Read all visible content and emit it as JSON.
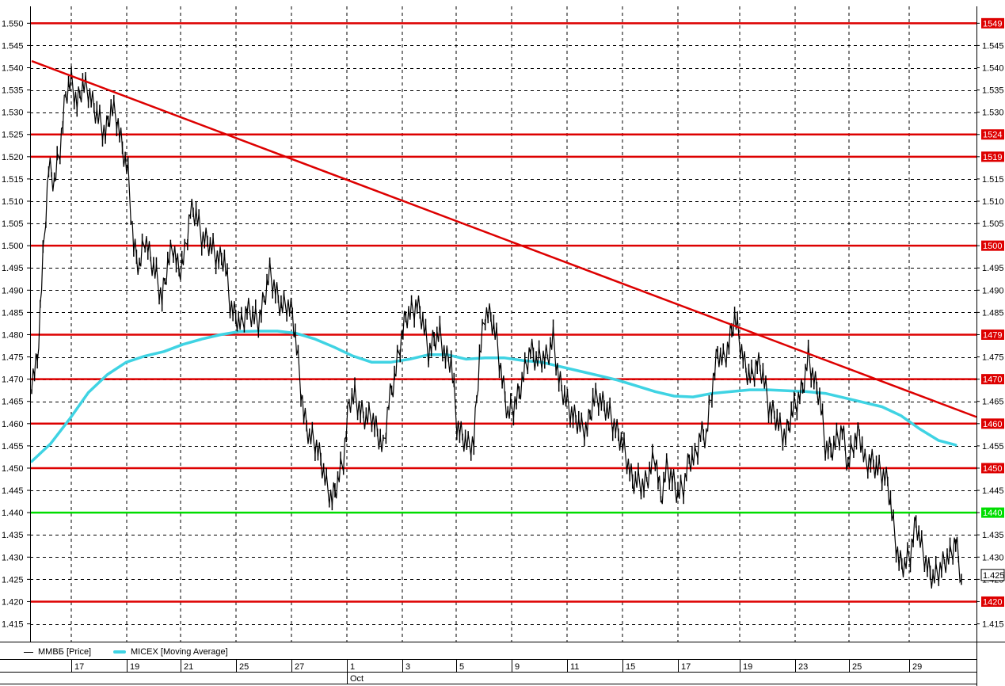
{
  "chart_data": {
    "type": "line",
    "title": "",
    "price_series_name": "ММВБ [Price]",
    "ma_series_name": "MICEX [Moving Average]",
    "colors": {
      "price": "#000000",
      "moving_average": "#3fd3e3",
      "level": "#dd0000",
      "support": "#00dd00",
      "grid": "#000000",
      "label_bg": "#dd0000",
      "label_text": "#ffffff"
    },
    "y_axis": {
      "ylim": [
        1.411,
        1.5538
      ],
      "ticks": [
        "1.415",
        "1.420",
        "1.425",
        "1.430",
        "1.435",
        "1.440",
        "1.445",
        "1.450",
        "1.455",
        "1.460",
        "1.465",
        "1.470",
        "1.475",
        "1.480",
        "1.485",
        "1.490",
        "1.495",
        "1.500",
        "1.505",
        "1.510",
        "1.515",
        "1.520",
        "1.525",
        "1.530",
        "1.535",
        "1.540",
        "1.545",
        "1.550"
      ],
      "grid": true
    },
    "x_axis": {
      "day_labels": [
        "17",
        "19",
        "21",
        "25",
        "27",
        "1",
        "3",
        "5",
        "9",
        "11",
        "15",
        "17",
        "19",
        "23",
        "25",
        "29"
      ],
      "month_label": "Oct",
      "grid": true
    },
    "horizontal_levels": [
      {
        "value": 1.55,
        "label": "1549",
        "kind": "resistance"
      },
      {
        "value": 1.525,
        "label": "1524",
        "kind": "resistance"
      },
      {
        "value": 1.52,
        "label": "1519",
        "kind": "resistance"
      },
      {
        "value": 1.5,
        "label": "1500",
        "kind": "resistance"
      },
      {
        "value": 1.48,
        "label": "1479",
        "kind": "resistance"
      },
      {
        "value": 1.47,
        "label": "1470",
        "kind": "resistance"
      },
      {
        "value": 1.46,
        "label": "1460",
        "kind": "resistance"
      },
      {
        "value": 1.45,
        "label": "1450",
        "kind": "resistance"
      },
      {
        "value": 1.44,
        "label": "1440",
        "kind": "support"
      },
      {
        "value": 1.42,
        "label": "1420",
        "kind": "resistance"
      }
    ],
    "current_value_label": "1.425",
    "trendline": {
      "start": [
        0,
        1.5415
      ],
      "end": [
        1.0,
        1.4615
      ]
    },
    "price_path": [
      [
        0.0,
        1.47
      ],
      [
        0.006,
        1.474
      ],
      [
        0.012,
        1.497
      ],
      [
        0.018,
        1.518
      ],
      [
        0.024,
        1.514
      ],
      [
        0.03,
        1.522
      ],
      [
        0.036,
        1.534
      ],
      [
        0.042,
        1.537
      ],
      [
        0.048,
        1.532
      ],
      [
        0.054,
        1.536
      ],
      [
        0.06,
        1.535
      ],
      [
        0.066,
        1.531
      ],
      [
        0.072,
        1.528
      ],
      [
        0.078,
        1.525
      ],
      [
        0.084,
        1.531
      ],
      [
        0.09,
        1.529
      ],
      [
        0.096,
        1.522
      ],
      [
        0.102,
        1.516
      ],
      [
        0.108,
        1.5
      ],
      [
        0.114,
        1.495
      ],
      [
        0.12,
        1.502
      ],
      [
        0.126,
        1.497
      ],
      [
        0.132,
        1.493
      ],
      [
        0.138,
        1.488
      ],
      [
        0.144,
        1.496
      ],
      [
        0.15,
        1.5
      ],
      [
        0.156,
        1.494
      ],
      [
        0.162,
        1.498
      ],
      [
        0.168,
        1.508
      ],
      [
        0.174,
        1.507
      ],
      [
        0.18,
        1.502
      ],
      [
        0.186,
        1.501
      ],
      [
        0.192,
        1.499
      ],
      [
        0.198,
        1.497
      ],
      [
        0.204,
        1.497
      ],
      [
        0.21,
        1.487
      ],
      [
        0.216,
        1.484
      ],
      [
        0.222,
        1.482
      ],
      [
        0.228,
        1.486
      ],
      [
        0.234,
        1.484
      ],
      [
        0.24,
        1.483
      ],
      [
        0.246,
        1.488
      ],
      [
        0.252,
        1.494
      ],
      [
        0.258,
        1.49
      ],
      [
        0.264,
        1.486
      ],
      [
        0.27,
        1.487
      ],
      [
        0.276,
        1.485
      ],
      [
        0.282,
        1.474
      ],
      [
        0.288,
        1.462
      ],
      [
        0.294,
        1.457
      ],
      [
        0.3,
        1.456
      ],
      [
        0.306,
        1.452
      ],
      [
        0.312,
        1.446
      ],
      [
        0.318,
        1.443
      ],
      [
        0.324,
        1.447
      ],
      [
        0.33,
        1.452
      ],
      [
        0.336,
        1.465
      ],
      [
        0.342,
        1.466
      ],
      [
        0.348,
        1.463
      ],
      [
        0.354,
        1.461
      ],
      [
        0.36,
        1.462
      ],
      [
        0.366,
        1.458
      ],
      [
        0.372,
        1.454
      ],
      [
        0.378,
        1.465
      ],
      [
        0.384,
        1.47
      ],
      [
        0.39,
        1.478
      ],
      [
        0.396,
        1.484
      ],
      [
        0.402,
        1.485
      ],
      [
        0.408,
        1.487
      ],
      [
        0.414,
        1.483
      ],
      [
        0.42,
        1.476
      ],
      [
        0.426,
        1.479
      ],
      [
        0.432,
        1.48
      ],
      [
        0.438,
        1.475
      ],
      [
        0.444,
        1.474
      ],
      [
        0.45,
        1.46
      ],
      [
        0.456,
        1.457
      ],
      [
        0.462,
        1.455
      ],
      [
        0.468,
        1.456
      ],
      [
        0.474,
        1.475
      ],
      [
        0.48,
        1.485
      ],
      [
        0.486,
        1.484
      ],
      [
        0.492,
        1.479
      ],
      [
        0.498,
        1.47
      ],
      [
        0.504,
        1.462
      ],
      [
        0.51,
        1.464
      ],
      [
        0.516,
        1.467
      ],
      [
        0.522,
        1.472
      ],
      [
        0.528,
        1.477
      ],
      [
        0.534,
        1.474
      ],
      [
        0.54,
        1.475
      ],
      [
        0.546,
        1.475
      ],
      [
        0.552,
        1.479
      ],
      [
        0.558,
        1.47
      ],
      [
        0.564,
        1.466
      ],
      [
        0.57,
        1.463
      ],
      [
        0.576,
        1.461
      ],
      [
        0.582,
        1.459
      ],
      [
        0.588,
        1.459
      ],
      [
        0.594,
        1.465
      ],
      [
        0.6,
        1.466
      ],
      [
        0.606,
        1.464
      ],
      [
        0.612,
        1.462
      ],
      [
        0.618,
        1.459
      ],
      [
        0.624,
        1.456
      ],
      [
        0.63,
        1.452
      ],
      [
        0.636,
        1.447
      ],
      [
        0.642,
        1.447
      ],
      [
        0.648,
        1.446
      ],
      [
        0.654,
        1.449
      ],
      [
        0.66,
        1.453
      ],
      [
        0.666,
        1.443
      ],
      [
        0.672,
        1.45
      ],
      [
        0.678,
        1.448
      ],
      [
        0.684,
        1.444
      ],
      [
        0.69,
        1.446
      ],
      [
        0.696,
        1.452
      ],
      [
        0.702,
        1.452
      ],
      [
        0.708,
        1.458
      ],
      [
        0.714,
        1.457
      ],
      [
        0.72,
        1.468
      ],
      [
        0.726,
        1.476
      ],
      [
        0.732,
        1.474
      ],
      [
        0.738,
        1.478
      ],
      [
        0.744,
        1.484
      ],
      [
        0.75,
        1.478
      ],
      [
        0.756,
        1.472
      ],
      [
        0.762,
        1.47
      ],
      [
        0.768,
        1.474
      ],
      [
        0.774,
        1.471
      ],
      [
        0.78,
        1.464
      ],
      [
        0.786,
        1.462
      ],
      [
        0.792,
        1.459
      ],
      [
        0.798,
        1.457
      ],
      [
        0.804,
        1.462
      ],
      [
        0.81,
        1.465
      ],
      [
        0.816,
        1.468
      ],
      [
        0.822,
        1.475
      ],
      [
        0.828,
        1.47
      ],
      [
        0.834,
        1.466
      ],
      [
        0.84,
        1.455
      ],
      [
        0.846,
        1.454
      ],
      [
        0.852,
        1.456
      ],
      [
        0.858,
        1.459
      ],
      [
        0.864,
        1.45
      ],
      [
        0.87,
        1.456
      ],
      [
        0.876,
        1.458
      ],
      [
        0.882,
        1.451
      ],
      [
        0.888,
        1.452
      ],
      [
        0.894,
        1.45
      ],
      [
        0.9,
        1.449
      ],
      [
        0.906,
        1.447
      ],
      [
        0.912,
        1.437
      ],
      [
        0.918,
        1.429
      ],
      [
        0.924,
        1.428
      ],
      [
        0.93,
        1.431
      ],
      [
        0.936,
        1.438
      ],
      [
        0.942,
        1.432
      ],
      [
        0.948,
        1.428
      ],
      [
        0.954,
        1.425
      ],
      [
        0.96,
        1.427
      ],
      [
        0.966,
        1.429
      ],
      [
        0.972,
        1.43
      ],
      [
        0.978,
        1.434
      ],
      [
        0.984,
        1.425
      ]
    ],
    "moving_average_path": [
      [
        0.0,
        1.4515
      ],
      [
        0.02,
        1.4555
      ],
      [
        0.04,
        1.461
      ],
      [
        0.06,
        1.467
      ],
      [
        0.08,
        1.471
      ],
      [
        0.1,
        1.4738
      ],
      [
        0.12,
        1.4752
      ],
      [
        0.14,
        1.4762
      ],
      [
        0.16,
        1.4778
      ],
      [
        0.18,
        1.479
      ],
      [
        0.2,
        1.48
      ],
      [
        0.22,
        1.4807
      ],
      [
        0.24,
        1.4808
      ],
      [
        0.26,
        1.4808
      ],
      [
        0.28,
        1.4803
      ],
      [
        0.3,
        1.479
      ],
      [
        0.32,
        1.4772
      ],
      [
        0.34,
        1.4752
      ],
      [
        0.36,
        1.4738
      ],
      [
        0.38,
        1.4738
      ],
      [
        0.4,
        1.4745
      ],
      [
        0.42,
        1.4755
      ],
      [
        0.44,
        1.4755
      ],
      [
        0.46,
        1.4745
      ],
      [
        0.48,
        1.4748
      ],
      [
        0.5,
        1.4748
      ],
      [
        0.52,
        1.4742
      ],
      [
        0.54,
        1.4738
      ],
      [
        0.56,
        1.4728
      ],
      [
        0.58,
        1.4718
      ],
      [
        0.6,
        1.4708
      ],
      [
        0.62,
        1.4698
      ],
      [
        0.64,
        1.4685
      ],
      [
        0.66,
        1.4672
      ],
      [
        0.68,
        1.4662
      ],
      [
        0.7,
        1.466
      ],
      [
        0.72,
        1.4668
      ],
      [
        0.74,
        1.4672
      ],
      [
        0.76,
        1.4676
      ],
      [
        0.78,
        1.4676
      ],
      [
        0.8,
        1.4674
      ],
      [
        0.82,
        1.4672
      ],
      [
        0.84,
        1.4668
      ],
      [
        0.86,
        1.4658
      ],
      [
        0.88,
        1.4648
      ],
      [
        0.9,
        1.4638
      ],
      [
        0.92,
        1.4618
      ],
      [
        0.94,
        1.4588
      ],
      [
        0.96,
        1.4562
      ],
      [
        0.978,
        1.4552
      ]
    ]
  }
}
